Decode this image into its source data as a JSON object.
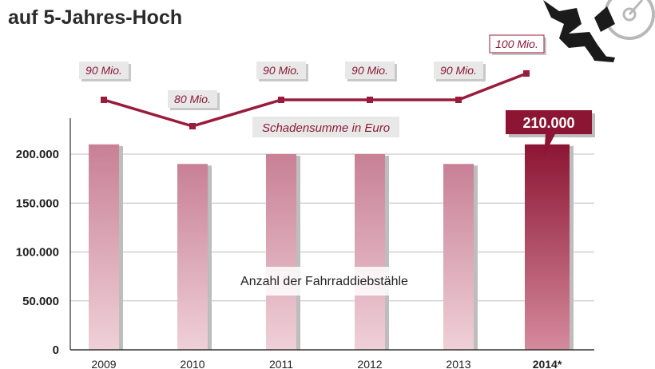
{
  "title": "auf 5-Jahres-Hoch",
  "chart_data": {
    "type": "bar",
    "categories": [
      "2009",
      "2010",
      "2011",
      "2012",
      "2013",
      "2014*"
    ],
    "highlight_index": 5,
    "ylim": [
      0,
      240000
    ],
    "yticks": [
      {
        "value": 0,
        "label": "0"
      },
      {
        "value": 50000,
        "label": "50.000"
      },
      {
        "value": 100000,
        "label": "100.000"
      },
      {
        "value": 150000,
        "label": "150.000"
      },
      {
        "value": 200000,
        "label": "200.000"
      }
    ],
    "bar_series": {
      "name": "Anzahl der Fahrraddiebstähle",
      "values": [
        210000,
        190000,
        200000,
        200000,
        190000,
        210000
      ],
      "highlight_label": "210.000"
    },
    "line_series": {
      "name": "Schadensumme in Euro",
      "values": [
        90,
        80,
        90,
        90,
        90,
        100
      ],
      "labels": [
        "90 Mio.",
        "80 Mio.",
        "90 Mio.",
        "90 Mio.",
        "90 Mio.",
        "100 Mio."
      ]
    },
    "colors": {
      "bar_top": "#c88096",
      "bar_bottom": "#efd0d8",
      "highlight_top": "#8c1533",
      "highlight_bottom": "#d58a9d",
      "line": "#9a1c3c",
      "label_box": "#e8e8e8"
    }
  }
}
